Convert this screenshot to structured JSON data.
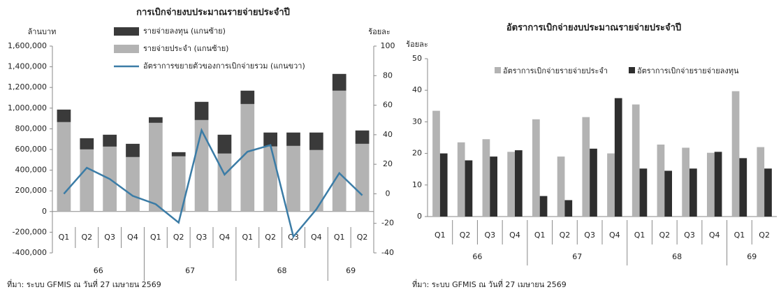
{
  "chart_data": [
    {
      "type": "bar",
      "stacked": true,
      "title": "การเบิกจ่ายงบประมาณรายจ่ายประจำปี",
      "y_label": "ล้านบาท",
      "y2_label": "ร้อยละ",
      "categories": [
        "Q1",
        "Q2",
        "Q3",
        "Q4",
        "Q1",
        "Q2",
        "Q3",
        "Q4",
        "Q1",
        "Q2",
        "Q3",
        "Q4",
        "Q1",
        "Q2"
      ],
      "groups": [
        "66",
        "67",
        "68",
        "69"
      ],
      "series": [
        {
          "name": "รายจ่ายประจำ (แกนซ้าย)",
          "color": "#b3b3b3",
          "values": [
            865000,
            601000,
            628000,
            527000,
            858000,
            534000,
            885000,
            561000,
            1040000,
            630000,
            635000,
            595000,
            1169000,
            655000
          ]
        },
        {
          "name": "รายจ่ายลงทุน (แกนซ้าย)",
          "color": "#3a3a3a",
          "values": [
            121000,
            108000,
            115000,
            128000,
            54000,
            40000,
            176000,
            182000,
            129000,
            134000,
            129000,
            169000,
            162000,
            129000
          ]
        },
        {
          "name": "อัตราการขยายตัวของการเบิกจ่ายรวม (แกนขวา)",
          "color": "#3b7ca6",
          "type": "line",
          "axis": "y2",
          "values": [
            0,
            17.6,
            10,
            -1.4,
            -7,
            -19.5,
            43,
            13,
            28.5,
            33,
            -29,
            -10.5,
            14,
            -1
          ]
        }
      ],
      "ylim": [
        -400000,
        1600000
      ],
      "yticks": [
        {
          "value": -400000,
          "label": "-400,000"
        },
        {
          "value": -200000,
          "label": "-200,000"
        },
        0,
        {
          "value": 200000,
          "label": "200,000"
        },
        {
          "value": 400000,
          "label": "400,000"
        },
        {
          "value": 600000,
          "label": "600,000"
        },
        {
          "value": 800000,
          "label": "800,000"
        },
        {
          "value": 1000000,
          "label": "1,000,000"
        },
        {
          "value": 1200000,
          "label": "1,200,000"
        },
        {
          "value": 1400000,
          "label": "1,400,000"
        },
        {
          "value": 1600000,
          "label": "1,600,000"
        }
      ],
      "y2lim": [
        -40,
        100
      ],
      "y2ticks": [
        -40,
        -20,
        0,
        20,
        40,
        60,
        80,
        100
      ],
      "source": "ที่มา: ระบบ GFMIS ณ วันที่ 27 เมษายน 2569"
    },
    {
      "type": "bar",
      "title": "อัตราการเบิกจ่ายงบประมาณรายจ่ายประจำปี",
      "y_label": "ร้อยละ",
      "categories": [
        "Q1",
        "Q2",
        "Q3",
        "Q4",
        "Q1",
        "Q2",
        "Q3",
        "Q4",
        "Q1",
        "Q2",
        "Q3",
        "Q4",
        "Q1",
        "Q2"
      ],
      "groups": [
        "66",
        "67",
        "68",
        "69"
      ],
      "series": [
        {
          "name": "อัตราการเบิกจ่ายรายจ่ายประจำ",
          "color": "#b3b3b3",
          "values": [
            33.5,
            23.5,
            24.5,
            20.5,
            30.8,
            19,
            31.5,
            20,
            35.5,
            22.8,
            21.8,
            20.2,
            39.7,
            22
          ]
        },
        {
          "name": "อัตราการเบิกจ่ายรายจ่ายลงทุน",
          "color": "#2e2e2e",
          "values": [
            20,
            17.8,
            19,
            21,
            6.5,
            5.2,
            21.5,
            37.5,
            15.2,
            14.5,
            15.2,
            20.5,
            18.5,
            15.2
          ]
        }
      ],
      "ylim": [
        0,
        50
      ],
      "yticks": [
        0,
        10,
        20,
        30,
        40,
        50
      ],
      "source": "ที่มา: ระบบ GFMIS ณ วันที่ 27 เมษายน 2569"
    }
  ]
}
